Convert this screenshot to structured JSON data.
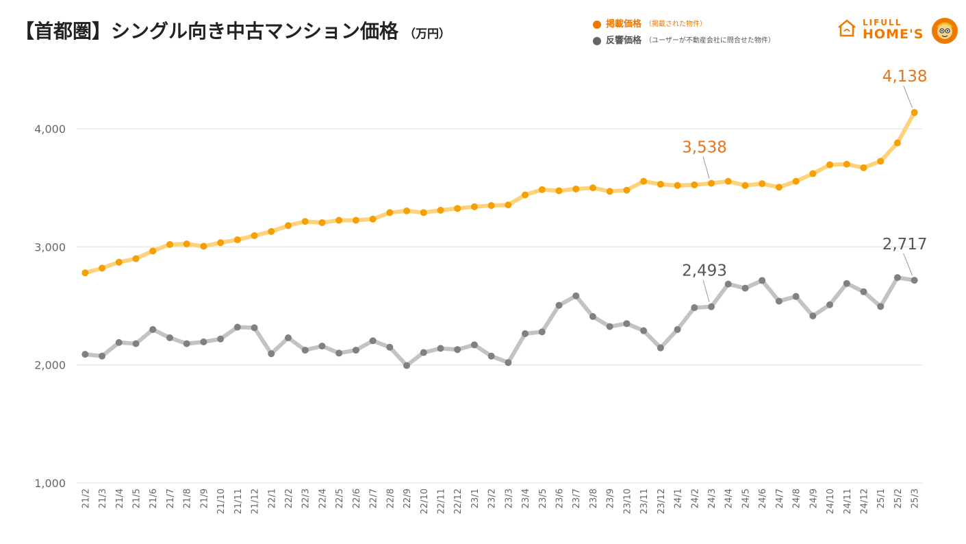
{
  "title": "【首都圏】シングル向き中古マンション価格",
  "title_unit": "（万円）",
  "legend": [
    {
      "label": "掲載価格",
      "note": "（掲載された物件）",
      "color": "#ee7800"
    },
    {
      "label": "反響価格",
      "note": "（ユーザーが不動産会社に問合せた物件）",
      "color": "#666666"
    }
  ],
  "logo": {
    "small": "LIFULL",
    "big": "HOME'S"
  },
  "chart_data": {
    "type": "line",
    "categories": [
      "21/2",
      "21/3",
      "21/4",
      "21/5",
      "21/6",
      "21/7",
      "21/8",
      "21/9",
      "21/10",
      "21/11",
      "21/12",
      "22/1",
      "22/2",
      "22/3",
      "22/4",
      "22/5",
      "22/6",
      "22/7",
      "22/8",
      "22/9",
      "22/10",
      "22/11",
      "22/12",
      "23/1",
      "23/2",
      "23/3",
      "23/4",
      "23/5",
      "23/6",
      "23/7",
      "23/8",
      "23/9",
      "23/10",
      "23/11",
      "23/12",
      "24/1",
      "24/2",
      "24/3",
      "24/4",
      "24/5",
      "24/6",
      "24/7",
      "24/8",
      "24/9",
      "24/10",
      "24/11",
      "24/12",
      "25/1",
      "25/2",
      "25/3"
    ],
    "ylim": [
      1000,
      4400
    ],
    "yticks": [
      1000,
      2000,
      3000,
      4000
    ],
    "ytick_labels": [
      "1,000",
      "2,000",
      "3,000",
      "4,000"
    ],
    "grid": true,
    "series": [
      {
        "name": "掲載価格",
        "line_color": "#fdd27a",
        "marker_color": "#f5a000",
        "label_color": "#e8731a",
        "values": [
          2780,
          2820,
          2870,
          2900,
          2965,
          3020,
          3025,
          3005,
          3035,
          3060,
          3095,
          3130,
          3180,
          3215,
          3205,
          3225,
          3225,
          3235,
          3290,
          3305,
          3290,
          3310,
          3325,
          3340,
          3350,
          3355,
          3440,
          3485,
          3475,
          3490,
          3500,
          3470,
          3480,
          3555,
          3530,
          3520,
          3525,
          3538,
          3555,
          3520,
          3535,
          3505,
          3555,
          3620,
          3695,
          3700,
          3670,
          3725,
          3880,
          4138
        ],
        "annotations": [
          {
            "index": 37,
            "text": "3,538"
          },
          {
            "index": 49,
            "text": "4,138"
          }
        ]
      },
      {
        "name": "反響価格",
        "line_color": "#c3c3c3",
        "marker_color": "#808080",
        "label_color": "#555555",
        "values": [
          2090,
          2075,
          2190,
          2180,
          2300,
          2230,
          2180,
          2195,
          2220,
          2320,
          2315,
          2095,
          2230,
          2125,
          2160,
          2100,
          2125,
          2205,
          2150,
          1995,
          2105,
          2140,
          2130,
          2170,
          2075,
          2020,
          2265,
          2280,
          2505,
          2585,
          2410,
          2325,
          2350,
          2290,
          2145,
          2300,
          2485,
          2493,
          2685,
          2650,
          2715,
          2540,
          2580,
          2415,
          2510,
          2690,
          2620,
          2495,
          2740,
          2717
        ],
        "annotations": [
          {
            "index": 37,
            "text": "2,493"
          },
          {
            "index": 49,
            "text": "2,717"
          }
        ]
      }
    ]
  }
}
